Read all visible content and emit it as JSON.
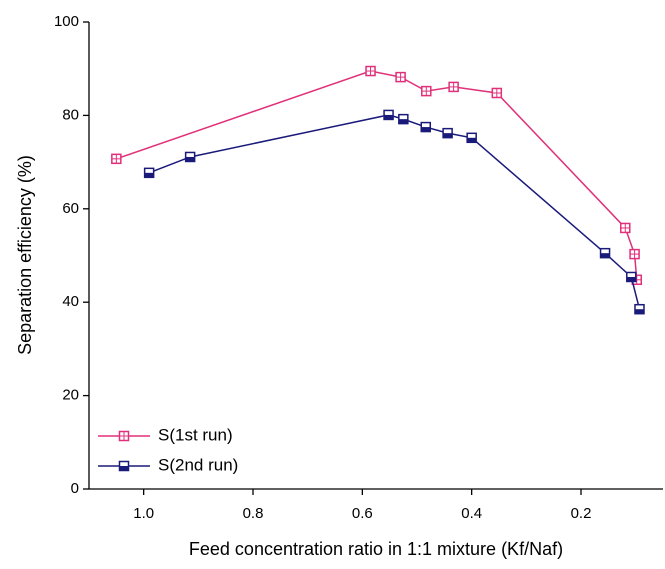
{
  "chart_data": {
    "type": "line",
    "xlabel": "Feed concentration ratio in 1:1 mixture (Kf/Naf)",
    "ylabel": "Separation efficiency (%)",
    "xlim": [
      1.1,
      0.05
    ],
    "ylim": [
      0,
      100
    ],
    "xticks": [
      {
        "value": 1,
        "label": "1.0"
      },
      0.8,
      0.6,
      0.4,
      0.2
    ],
    "yticks": [
      0,
      20,
      40,
      60,
      80,
      100
    ],
    "legend": "lower left",
    "series": [
      {
        "name": "S(1st run)",
        "color": "#e0307a",
        "x": [
          1.05,
          0.585,
          0.53,
          0.483,
          0.433,
          0.354,
          0.119,
          0.102,
          0.098
        ],
        "values": [
          70.7,
          89.5,
          88.2,
          85.2,
          86.1,
          84.8,
          55.9,
          50.3,
          44.8
        ]
      },
      {
        "name": "S(2nd run)",
        "color": "#1a1a7a",
        "x": [
          0.99,
          0.915,
          0.552,
          0.525,
          0.484,
          0.444,
          0.4,
          0.156,
          0.108,
          0.093
        ],
        "values": [
          67.7,
          71.1,
          80.1,
          79.2,
          77.5,
          76.2,
          75.2,
          50.5,
          45.4,
          38.5
        ]
      }
    ]
  }
}
